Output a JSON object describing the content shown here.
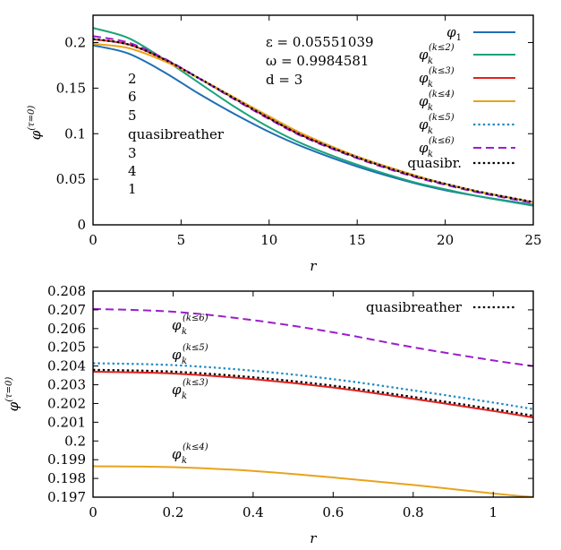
{
  "chart_data": [
    {
      "type": "line",
      "xlabel": "r",
      "ylabel": "φ^(τ=0)",
      "xlim": [
        0,
        25
      ],
      "ylim": [
        0,
        0.23
      ],
      "xticks": [
        "0",
        "5",
        "10",
        "15",
        "20",
        "25"
      ],
      "yticks": [
        "0",
        "0.05",
        "0.1",
        "0.15",
        "0.2"
      ],
      "annotations": [
        "ε = 0.05551039",
        "ω = 0.9984581",
        "d = 3"
      ],
      "order_list": [
        "2",
        "6",
        "5",
        "quasibreather",
        "3",
        "4",
        "1"
      ],
      "legend_position": "top-right",
      "series": [
        {
          "name": "φ1",
          "color": "#1f6eb4",
          "dash": "solid",
          "x": [
            0,
            2,
            4,
            6,
            8,
            10,
            12,
            15,
            18,
            20,
            22,
            25
          ],
          "y": [
            0.197,
            0.188,
            0.168,
            0.144,
            0.122,
            0.102,
            0.085,
            0.064,
            0.047,
            0.038,
            0.031,
            0.022
          ]
        },
        {
          "name": "φk(k≤2)",
          "color": "#1aa37a",
          "dash": "solid",
          "x": [
            0,
            2,
            4,
            6,
            8,
            10,
            12,
            15,
            18,
            20,
            22,
            25
          ],
          "y": [
            0.216,
            0.205,
            0.182,
            0.156,
            0.13,
            0.107,
            0.088,
            0.066,
            0.048,
            0.039,
            0.031,
            0.021
          ]
        },
        {
          "name": "φk(k≤3)",
          "color": "#e3211c",
          "dash": "solid",
          "x": [
            0,
            2,
            4,
            6,
            8,
            10,
            12,
            15,
            18,
            20,
            22,
            25
          ],
          "y": [
            0.2037,
            0.198,
            0.182,
            0.161,
            0.139,
            0.117,
            0.097,
            0.074,
            0.055,
            0.045,
            0.036,
            0.025
          ]
        },
        {
          "name": "φk(k≤4)",
          "color": "#e8a31c",
          "dash": "solid",
          "x": [
            0,
            2,
            4,
            6,
            8,
            10,
            12,
            15,
            18,
            20,
            22,
            25
          ],
          "y": [
            0.1986,
            0.194,
            0.18,
            0.161,
            0.14,
            0.119,
            0.099,
            0.075,
            0.056,
            0.045,
            0.036,
            0.025
          ]
        },
        {
          "name": "φk(k≤5)",
          "color": "#1f8ac2",
          "dash": "dot",
          "x": [
            0,
            2,
            4,
            6,
            8,
            10,
            12,
            15,
            18,
            20,
            22,
            25
          ],
          "y": [
            0.2041,
            0.198,
            0.182,
            0.161,
            0.139,
            0.117,
            0.097,
            0.074,
            0.055,
            0.045,
            0.036,
            0.025
          ]
        },
        {
          "name": "φk(k≤6)",
          "color": "#9b1fc8",
          "dash": "dash",
          "x": [
            0,
            2,
            4,
            6,
            8,
            10,
            12,
            15,
            18,
            20,
            22,
            25
          ],
          "y": [
            0.207,
            0.2,
            0.183,
            0.161,
            0.138,
            0.116,
            0.096,
            0.073,
            0.054,
            0.044,
            0.035,
            0.024
          ]
        },
        {
          "name": "quasibr.",
          "color": "#000000",
          "dash": "dot",
          "x": [
            0,
            2,
            4,
            6,
            8,
            10,
            12,
            15,
            18,
            20,
            22,
            25
          ],
          "y": [
            0.2038,
            0.198,
            0.182,
            0.161,
            0.139,
            0.117,
            0.097,
            0.074,
            0.055,
            0.045,
            0.036,
            0.025
          ]
        }
      ]
    },
    {
      "type": "line",
      "xlabel": "r",
      "ylabel": "φ^(τ=0)",
      "xlim": [
        0,
        1.1
      ],
      "ylim": [
        0.197,
        0.208
      ],
      "xticks": [
        "0",
        "0.2",
        "0.4",
        "0.6",
        "0.8",
        "1"
      ],
      "yticks": [
        "0.197",
        "0.198",
        "0.199",
        "0.2",
        "0.201",
        "0.202",
        "0.203",
        "0.204",
        "0.205",
        "0.206",
        "0.207",
        "0.208"
      ],
      "legend": [
        "quasibreather"
      ],
      "legend_position": "top-right",
      "curve_labels": [
        {
          "text": "φk(k≤6)",
          "at": [
            0.2,
            0.2068
          ]
        },
        {
          "text": "φk(k≤5)",
          "at": [
            0.2,
            0.2044
          ]
        },
        {
          "text": "φk(k≤3)",
          "at": [
            0.2,
            0.2026
          ]
        },
        {
          "text": "φk(k≤4)",
          "at": [
            0.2,
            0.1993
          ]
        }
      ],
      "series": [
        {
          "name": "φk(k≤6)",
          "color": "#9b1fc8",
          "dash": "dash",
          "x": [
            0,
            0.2,
            0.4,
            0.6,
            0.8,
            1.0,
            1.1
          ],
          "y": [
            0.20705,
            0.2069,
            0.20645,
            0.2058,
            0.205,
            0.2043,
            0.204
          ]
        },
        {
          "name": "φk(k≤5)",
          "color": "#1f8ac2",
          "dash": "dot",
          "x": [
            0,
            0.2,
            0.4,
            0.6,
            0.8,
            1.0,
            1.1
          ],
          "y": [
            0.20415,
            0.20405,
            0.20375,
            0.2033,
            0.2027,
            0.20205,
            0.2017
          ]
        },
        {
          "name": "φk(k≤3)",
          "color": "#e3211c",
          "dash": "solid",
          "x": [
            0,
            0.2,
            0.4,
            0.6,
            0.8,
            1.0,
            1.1
          ],
          "y": [
            0.2037,
            0.2036,
            0.2033,
            0.20285,
            0.20225,
            0.2016,
            0.20125
          ]
        },
        {
          "name": "quasibreather",
          "color": "#000000",
          "dash": "dot",
          "x": [
            0,
            0.2,
            0.4,
            0.6,
            0.8,
            1.0,
            1.1
          ],
          "y": [
            0.2038,
            0.2037,
            0.2034,
            0.20295,
            0.20235,
            0.2017,
            0.20135
          ]
        },
        {
          "name": "φk(k≤4)",
          "color": "#e8a31c",
          "dash": "solid",
          "x": [
            0,
            0.2,
            0.4,
            0.6,
            0.8,
            1.0,
            1.1
          ],
          "y": [
            0.19865,
            0.1986,
            0.1984,
            0.19805,
            0.19765,
            0.1972,
            0.197
          ]
        }
      ]
    }
  ]
}
